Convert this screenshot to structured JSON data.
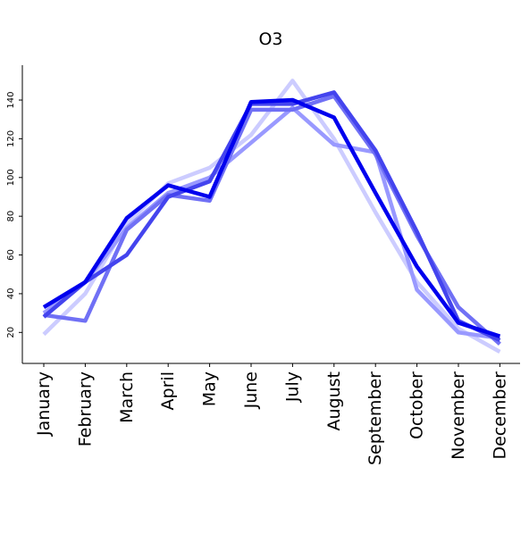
{
  "chart_data": {
    "type": "line",
    "title": "O3",
    "xlabel": "",
    "ylabel": "",
    "categories": [
      "January",
      "February",
      "March",
      "April",
      "May",
      "June",
      "July",
      "August",
      "September",
      "October",
      "November",
      "December"
    ],
    "yticks": [
      20,
      40,
      60,
      80,
      100,
      120,
      140
    ],
    "ylim": [
      4,
      158
    ],
    "grid": false,
    "series": [
      {
        "color": "#ccccff",
        "opacity": 1.0,
        "values": [
          19,
          40,
          76,
          97,
          105,
          122,
          150,
          120,
          82,
          46,
          22,
          10
        ]
      },
      {
        "color": "#9999ff",
        "opacity": 1.0,
        "values": [
          30,
          46,
          74,
          92,
          100,
          118,
          136,
          117,
          113,
          42,
          20,
          17
        ]
      },
      {
        "color": "#7070f5",
        "opacity": 1.0,
        "values": [
          29,
          26,
          73,
          91,
          88,
          135,
          135,
          142,
          112,
          70,
          33,
          14
        ]
      },
      {
        "color": "#4444ee",
        "opacity": 1.0,
        "values": [
          28,
          46,
          60,
          90,
          98,
          138,
          138,
          144,
          114,
          72,
          26,
          16
        ]
      },
      {
        "color": "#0000ee",
        "opacity": 1.0,
        "values": [
          33,
          46,
          79,
          96,
          90,
          139,
          140,
          131,
          92,
          54,
          25,
          18
        ]
      }
    ]
  }
}
